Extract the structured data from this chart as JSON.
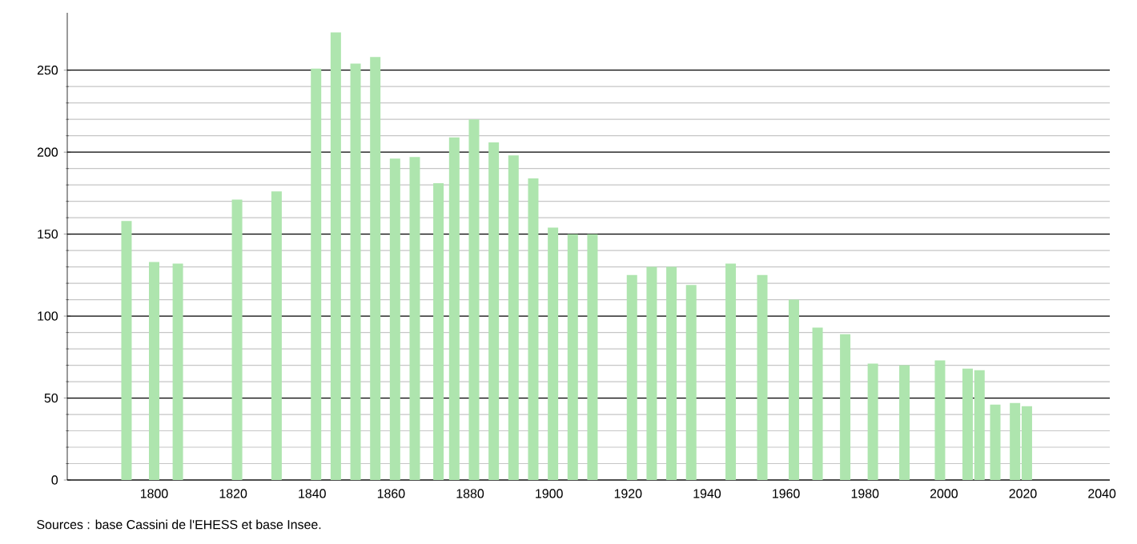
{
  "chart_data": {
    "type": "bar",
    "x": [
      1793,
      1800,
      1806,
      1821,
      1831,
      1841,
      1846,
      1851,
      1856,
      1861,
      1866,
      1872,
      1876,
      1881,
      1886,
      1891,
      1896,
      1901,
      1906,
      1911,
      1921,
      1926,
      1931,
      1936,
      1946,
      1954,
      1962,
      1968,
      1975,
      1982,
      1990,
      1999,
      2006,
      2009,
      2013,
      2018,
      2021
    ],
    "values": [
      158,
      133,
      132,
      171,
      176,
      251,
      273,
      254,
      258,
      196,
      197,
      181,
      209,
      220,
      206,
      198,
      184,
      154,
      150,
      150,
      125,
      130,
      130,
      119,
      132,
      125,
      110,
      93,
      89,
      71,
      70,
      73,
      68,
      67,
      46,
      47,
      45
    ],
    "color": "#aee5ae",
    "xlim": [
      1778,
      2042
    ],
    "ylim": [
      0,
      285
    ],
    "xticks": [
      1800,
      1820,
      1840,
      1860,
      1880,
      1900,
      1920,
      1940,
      1960,
      1980,
      2000,
      2020,
      2040
    ],
    "yticks": [
      0,
      50,
      100,
      150,
      200,
      250
    ],
    "grid": "y",
    "annotations": [
      "Sources : base Cassini de l'EHESS et base Insee."
    ]
  }
}
